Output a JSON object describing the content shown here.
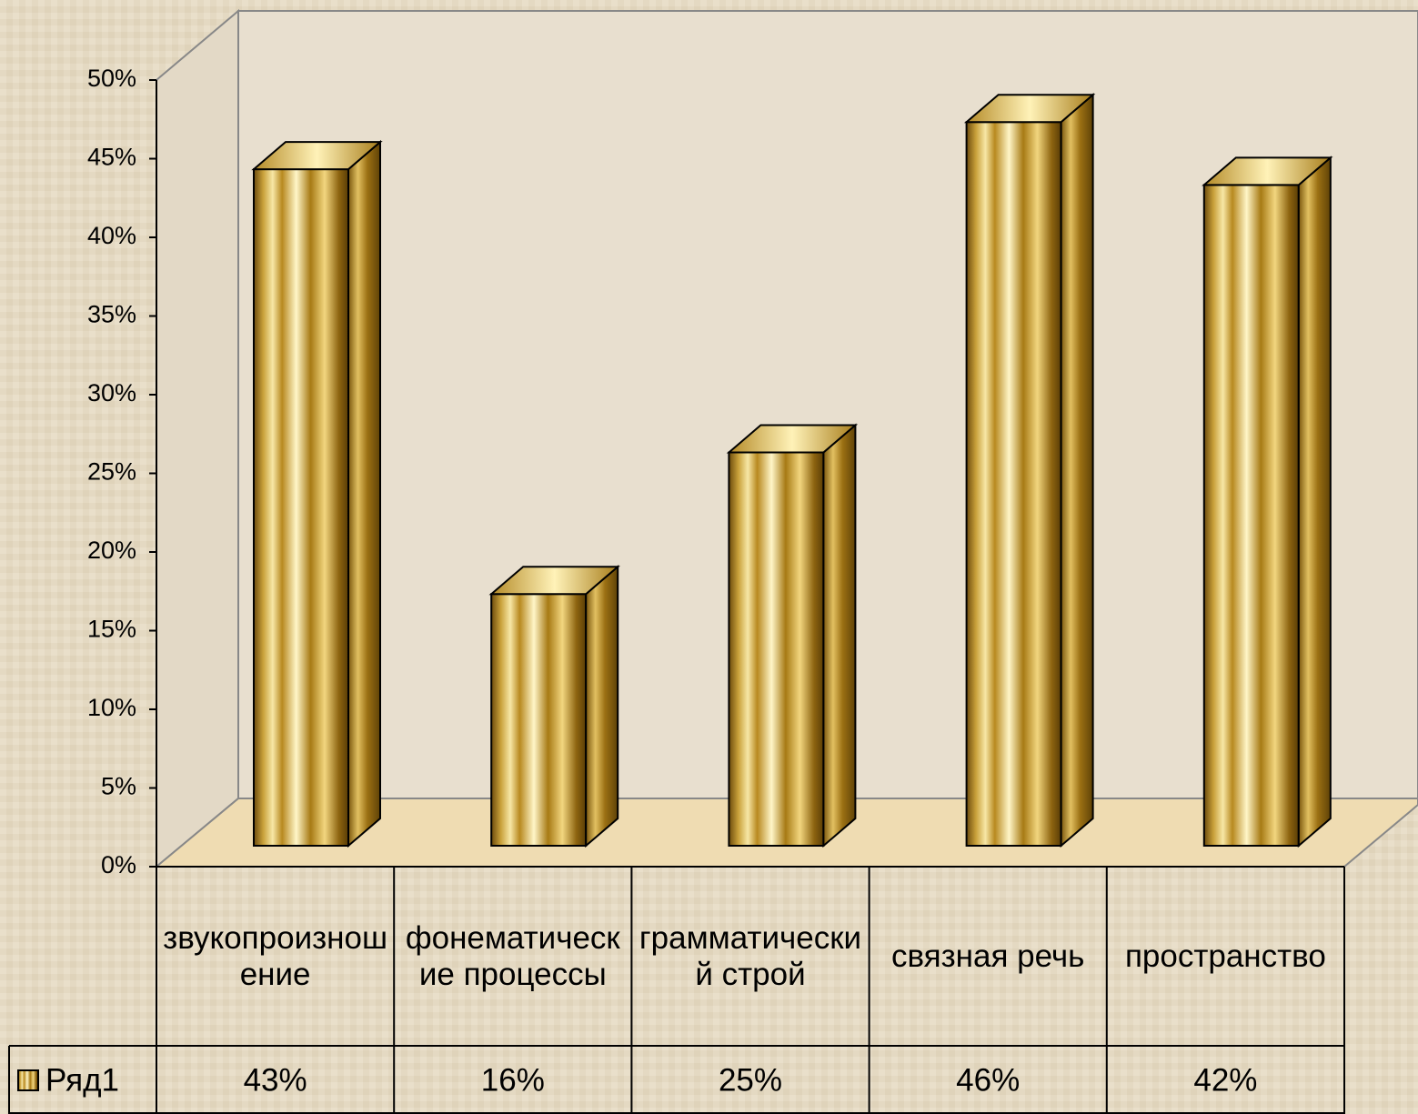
{
  "chart_data": {
    "type": "bar3d",
    "categories": [
      "звукопроизношение",
      "фонематические процессы",
      "грамматический строй",
      "связная речь",
      "пространство"
    ],
    "series": [
      {
        "name": "Ряд1",
        "color": "#c9a227",
        "values": [
          43,
          16,
          25,
          46,
          42
        ],
        "value_labels": [
          "43%",
          "16%",
          "25%",
          "46%",
          "42%"
        ]
      }
    ],
    "ylim": [
      0,
      50
    ],
    "yticks": [
      {
        "value": 0,
        "label": "0%"
      },
      {
        "value": 5,
        "label": "5%"
      },
      {
        "value": 10,
        "label": "10%"
      },
      {
        "value": 15,
        "label": "15%"
      },
      {
        "value": 20,
        "label": "20%"
      },
      {
        "value": 25,
        "label": "25%"
      },
      {
        "value": 30,
        "label": "30%"
      },
      {
        "value": 35,
        "label": "35%"
      },
      {
        "value": 40,
        "label": "40%"
      },
      {
        "value": 45,
        "label": "45%"
      },
      {
        "value": 50,
        "label": "50%"
      }
    ],
    "grid": false,
    "legend": "data-table"
  }
}
